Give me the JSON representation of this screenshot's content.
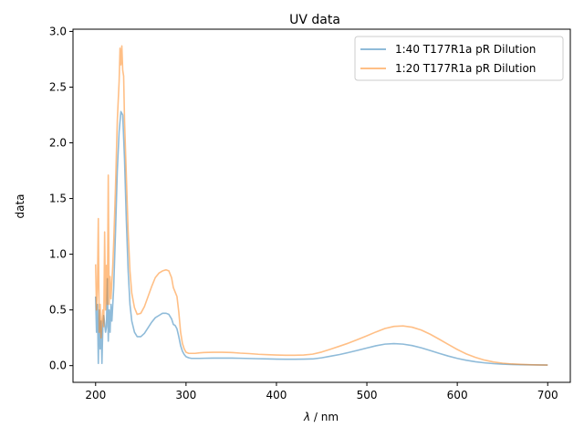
{
  "chart_data": {
    "type": "line",
    "title": "UV data",
    "xlabel_italic": "λ",
    "xlabel_rest": " / nm",
    "ylabel": "data",
    "xlim": [
      175,
      725
    ],
    "ylim": [
      -0.15,
      3.02
    ],
    "xticks": [
      200,
      300,
      400,
      500,
      600,
      700
    ],
    "xtick_labels": [
      "200",
      "300",
      "400",
      "500",
      "600",
      "700"
    ],
    "yticks": [
      0.0,
      0.5,
      1.0,
      1.5,
      2.0,
      2.5,
      3.0
    ],
    "ytick_labels": [
      "0.0",
      "0.5",
      "1.0",
      "1.5",
      "2.0",
      "2.5",
      "3.0"
    ],
    "grid": false,
    "legend_position": "top-right",
    "series": [
      {
        "name": "1:40 T177R1a pR Dilution",
        "color": "#1f77b4",
        "opacity": 0.5,
        "x": [
          200,
          201,
          202,
          203,
          204,
          205,
          206,
          207,
          208,
          209,
          210,
          211,
          212,
          213,
          214,
          215,
          216,
          217,
          218,
          219,
          220,
          222,
          224,
          226,
          228,
          230,
          232,
          234,
          236,
          238,
          240,
          243,
          246,
          250,
          254,
          258,
          262,
          266,
          270,
          274,
          278,
          281,
          284,
          286,
          288,
          290,
          292,
          294,
          296,
          298,
          300,
          303,
          306,
          310,
          315,
          320,
          330,
          340,
          350,
          360,
          370,
          380,
          390,
          400,
          410,
          420,
          430,
          440,
          450,
          460,
          470,
          480,
          490,
          500,
          510,
          520,
          530,
          540,
          550,
          560,
          570,
          580,
          590,
          600,
          610,
          620,
          630,
          640,
          650,
          660,
          670,
          680,
          690,
          700
        ],
        "y": [
          0.62,
          0.3,
          0.55,
          0.02,
          0.5,
          0.15,
          0.4,
          0.02,
          0.35,
          0.45,
          0.38,
          0.3,
          0.35,
          0.78,
          0.22,
          0.5,
          0.3,
          0.55,
          0.4,
          0.55,
          0.7,
          1.2,
          1.75,
          2.1,
          2.28,
          2.25,
          1.85,
          1.3,
          0.85,
          0.55,
          0.4,
          0.3,
          0.26,
          0.26,
          0.29,
          0.34,
          0.39,
          0.43,
          0.45,
          0.47,
          0.47,
          0.46,
          0.42,
          0.37,
          0.36,
          0.33,
          0.26,
          0.18,
          0.13,
          0.1,
          0.08,
          0.07,
          0.065,
          0.065,
          0.065,
          0.066,
          0.068,
          0.068,
          0.068,
          0.066,
          0.064,
          0.062,
          0.06,
          0.058,
          0.057,
          0.057,
          0.058,
          0.06,
          0.07,
          0.085,
          0.1,
          0.118,
          0.138,
          0.158,
          0.178,
          0.193,
          0.198,
          0.193,
          0.18,
          0.16,
          0.136,
          0.11,
          0.086,
          0.065,
          0.048,
          0.035,
          0.025,
          0.018,
          0.013,
          0.01,
          0.008,
          0.007,
          0.006,
          0.005
        ]
      },
      {
        "name": "1:20 T177R1a pR Dilution",
        "color": "#ff7f0e",
        "opacity": 0.5,
        "x": [
          200,
          201,
          202,
          203,
          204,
          205,
          206,
          207,
          208,
          209,
          210,
          211,
          212,
          213,
          214,
          215,
          216,
          217,
          218,
          219,
          220,
          222,
          224,
          226,
          227,
          228,
          229,
          230,
          231,
          232,
          234,
          236,
          238,
          240,
          243,
          246,
          250,
          254,
          258,
          262,
          266,
          270,
          274,
          278,
          281,
          284,
          286,
          288,
          290,
          292,
          294,
          296,
          298,
          300,
          303,
          306,
          310,
          315,
          320,
          330,
          340,
          350,
          360,
          370,
          380,
          390,
          400,
          410,
          420,
          430,
          440,
          450,
          460,
          470,
          480,
          490,
          500,
          510,
          520,
          530,
          540,
          550,
          560,
          570,
          580,
          590,
          600,
          610,
          620,
          630,
          640,
          650,
          660,
          670,
          680,
          690,
          700
        ],
        "y": [
          0.91,
          0.5,
          0.7,
          1.32,
          0.3,
          0.55,
          0.25,
          0.4,
          0.5,
          0.35,
          1.2,
          0.5,
          0.9,
          0.55,
          1.71,
          0.55,
          0.8,
          0.6,
          0.75,
          0.9,
          1.1,
          1.6,
          2.2,
          2.55,
          2.85,
          2.7,
          2.87,
          2.65,
          2.6,
          2.2,
          1.7,
          1.2,
          0.85,
          0.65,
          0.52,
          0.46,
          0.47,
          0.53,
          0.62,
          0.71,
          0.79,
          0.83,
          0.85,
          0.86,
          0.85,
          0.79,
          0.7,
          0.66,
          0.62,
          0.48,
          0.3,
          0.2,
          0.15,
          0.12,
          0.11,
          0.11,
          0.11,
          0.115,
          0.118,
          0.12,
          0.12,
          0.118,
          0.112,
          0.108,
          0.102,
          0.098,
          0.095,
          0.093,
          0.093,
          0.095,
          0.103,
          0.122,
          0.148,
          0.175,
          0.203,
          0.235,
          0.268,
          0.302,
          0.333,
          0.352,
          0.356,
          0.345,
          0.32,
          0.282,
          0.237,
          0.19,
          0.145,
          0.105,
          0.074,
          0.05,
          0.033,
          0.022,
          0.015,
          0.011,
          0.008,
          0.006,
          0.005
        ]
      }
    ]
  }
}
